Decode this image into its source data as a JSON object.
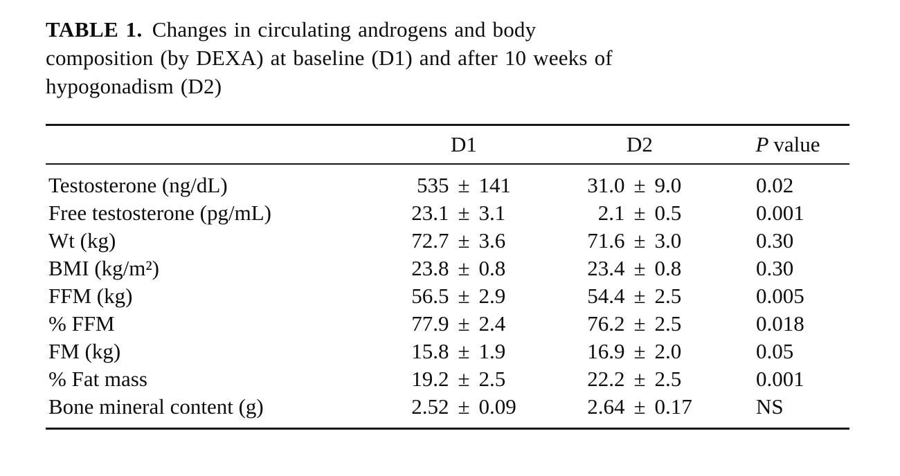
{
  "caption": {
    "label": "TABLE 1.",
    "lines": [
      "Changes in circulating androgens and body",
      "composition (by DEXA) at baseline (D1) and after 10 weeks of",
      "hypogonadism (D2)"
    ]
  },
  "symbols": {
    "plus_minus": "±"
  },
  "table": {
    "columns": {
      "label": "",
      "d1": "D1",
      "d2": "D2",
      "p_italic": "P",
      "p_rest": "value"
    },
    "rows": [
      {
        "label": "Testosterone (ng/dL)",
        "d1_mean": "535",
        "d1_sd": "141",
        "d2_mean": "31.0",
        "d2_sd": "9.0",
        "p": "0.02"
      },
      {
        "label": "Free testosterone (pg/mL)",
        "d1_mean": "23.1",
        "d1_sd": "3.1",
        "d2_mean": "2.1",
        "d2_sd": "0.5",
        "p": "0.001"
      },
      {
        "label": "Wt (kg)",
        "d1_mean": "72.7",
        "d1_sd": "3.6",
        "d2_mean": "71.6",
        "d2_sd": "3.0",
        "p": "0.30"
      },
      {
        "label": "BMI (kg/m²)",
        "d1_mean": "23.8",
        "d1_sd": "0.8",
        "d2_mean": "23.4",
        "d2_sd": "0.8",
        "p": "0.30"
      },
      {
        "label": "FFM (kg)",
        "d1_mean": "56.5",
        "d1_sd": "2.9",
        "d2_mean": "54.4",
        "d2_sd": "2.5",
        "p": "0.005"
      },
      {
        "label": "% FFM",
        "d1_mean": "77.9",
        "d1_sd": "2.4",
        "d2_mean": "76.2",
        "d2_sd": "2.5",
        "p": "0.018"
      },
      {
        "label": "FM (kg)",
        "d1_mean": "15.8",
        "d1_sd": "1.9",
        "d2_mean": "16.9",
        "d2_sd": "2.0",
        "p": "0.05"
      },
      {
        "label": "% Fat mass",
        "d1_mean": "19.2",
        "d1_sd": "2.5",
        "d2_mean": "22.2",
        "d2_sd": "2.5",
        "p": "0.001"
      },
      {
        "label": "Bone mineral content (g)",
        "d1_mean": "2.52",
        "d1_sd": "0.09",
        "d2_mean": "2.64",
        "d2_sd": "0.17",
        "p": "NS"
      }
    ]
  }
}
